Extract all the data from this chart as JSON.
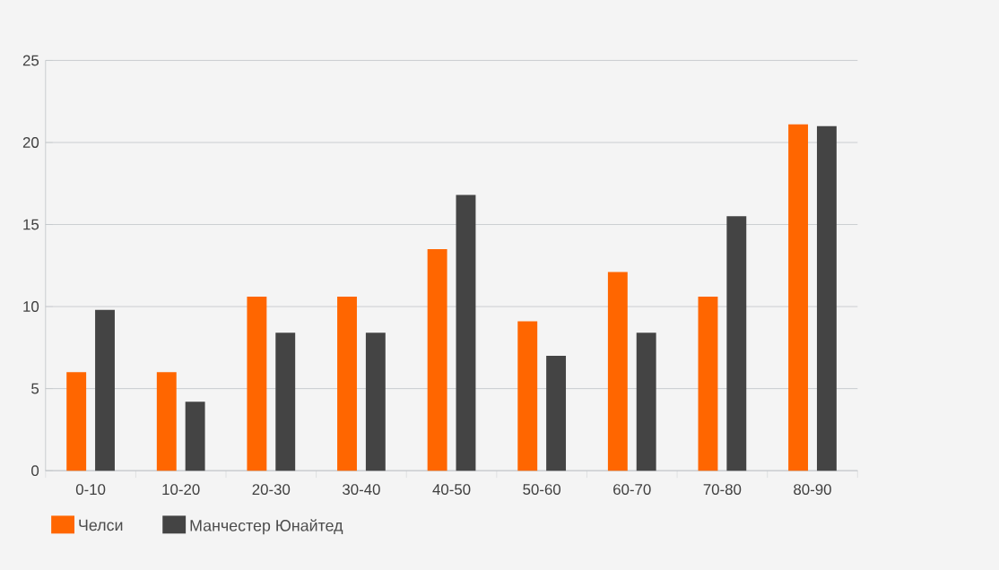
{
  "chart_data": {
    "type": "bar",
    "categories": [
      "0-10",
      "10-20",
      "20-30",
      "30-40",
      "40-50",
      "50-60",
      "60-70",
      "70-80",
      "80-90"
    ],
    "series": [
      {
        "name": "Челси",
        "color": "#ff6600",
        "values": [
          6.0,
          6.0,
          10.6,
          10.6,
          13.5,
          9.1,
          12.1,
          10.6,
          21.1
        ]
      },
      {
        "name": "Манчестер Юнайтед",
        "color": "#444444",
        "values": [
          9.8,
          4.2,
          8.4,
          8.4,
          16.8,
          7.0,
          8.4,
          15.5,
          21.0
        ]
      }
    ],
    "ylim": [
      0,
      25
    ],
    "yticks": [
      0,
      5,
      10,
      15,
      20,
      25
    ],
    "grid": "y",
    "legend": "bottom left"
  }
}
